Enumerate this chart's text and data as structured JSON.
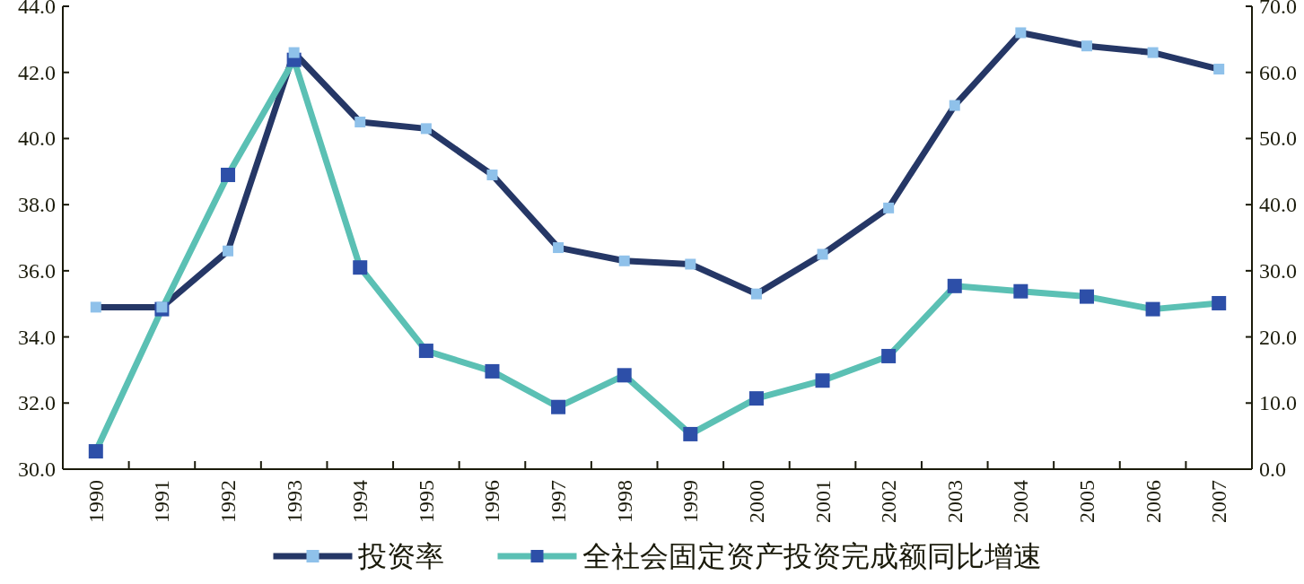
{
  "chart_data": {
    "type": "line",
    "categories": [
      "1990",
      "1991",
      "1992",
      "1993",
      "1994",
      "1995",
      "1996",
      "1997",
      "1998",
      "1999",
      "2000",
      "2001",
      "2002",
      "2003",
      "2004",
      "2005",
      "2006",
      "2007"
    ],
    "series": [
      {
        "name": "投资率",
        "color": "#253766",
        "colors": [
          "#8fc1ea",
          "#8fc1ea",
          "#8fc1ea",
          "#8fc1ea",
          "#8fc1ea",
          "#8fc1ea",
          "#8fc1ea",
          "#8fc1ea",
          "#8fc1ea",
          "#8fc1ea",
          "#8fc1ea",
          "#8fc1ea",
          "#8fc1ea",
          "#8fc1ea",
          "#8fc1ea",
          "#8fc1ea",
          "#8fc1ea",
          "#8fc1ea"
        ],
        "values": [
          34.9,
          34.9,
          36.6,
          42.6,
          40.5,
          40.3,
          38.9,
          36.7,
          36.3,
          36.2,
          35.3,
          36.5,
          37.9,
          41.0,
          43.2,
          42.8,
          42.6,
          42.1
        ]
      },
      {
        "name": "全社会固定资产投资完成额同比增速",
        "color": "#5bc0b4",
        "axis": "y2",
        "colors": [
          "#2d4fa8",
          "#2d4fa8",
          "#2d4fa8",
          "#2d4fa8",
          "#2d4fa8",
          "#2d4fa8",
          "#2d4fa8",
          "#2d4fa8",
          "#2d4fa8",
          "#2d4fa8",
          "#2d4fa8",
          "#2d4fa8",
          "#2d4fa8",
          "#2d4fa8",
          "#2d4fa8",
          "#2d4fa8",
          "#2d4fa8",
          "#2d4fa8"
        ],
        "values": [
          2.7,
          24.2,
          44.5,
          61.9,
          30.5,
          17.9,
          14.8,
          9.4,
          14.2,
          5.3,
          10.7,
          13.4,
          17.1,
          27.7,
          26.9,
          26.1,
          24.2,
          25.1
        ]
      }
    ],
    "ylim": [
      30,
      44
    ],
    "yticks": [
      {
        "value": 30,
        "label": "30.0"
      },
      {
        "value": 32,
        "label": "32.0"
      },
      {
        "value": 34,
        "label": "34.0"
      },
      {
        "value": 36,
        "label": "36.0"
      },
      {
        "value": 38,
        "label": "38.0"
      },
      {
        "value": 40,
        "label": "40.0"
      },
      {
        "value": 42,
        "label": "42.0"
      },
      {
        "value": 44,
        "label": "44.0"
      }
    ],
    "y2lim": [
      0,
      70
    ],
    "y2ticks": [
      {
        "value": 0,
        "label": "0.0"
      },
      {
        "value": 10,
        "label": "10.0"
      },
      {
        "value": 20,
        "label": "20.0"
      },
      {
        "value": 30,
        "label": "30.0"
      },
      {
        "value": 40,
        "label": "40.0"
      },
      {
        "value": 50,
        "label": "50.0"
      },
      {
        "value": 60,
        "label": "60.0"
      },
      {
        "value": 70,
        "label": "70.0"
      }
    ],
    "marker": "square",
    "line_style": "solid",
    "legend": "bottom",
    "grid": false
  }
}
